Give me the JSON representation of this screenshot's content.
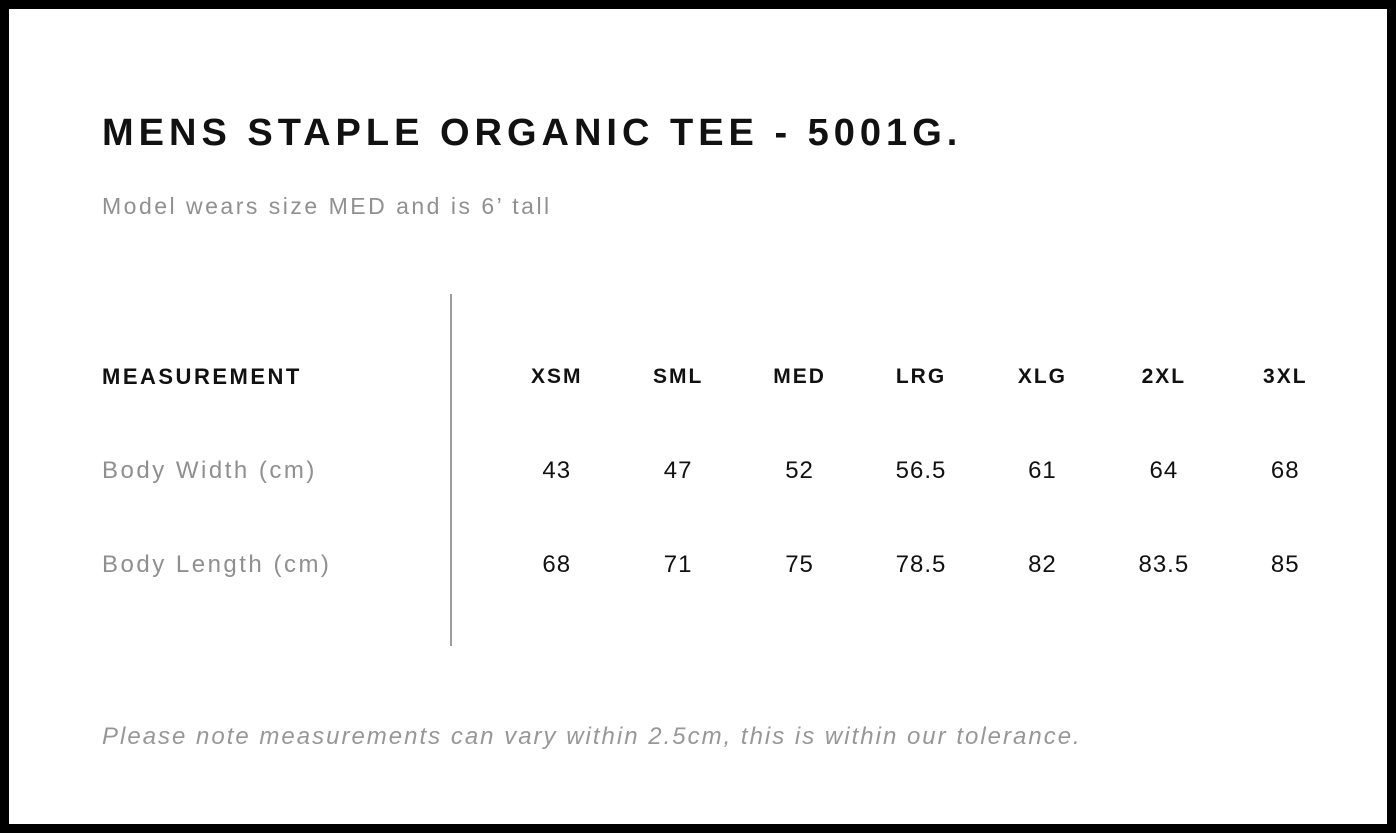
{
  "header": {
    "title": "MENS STAPLE ORGANIC TEE - 5001G.",
    "subtitle": "Model wears size MED and is 6’ tall"
  },
  "table": {
    "measurement_header": "MEASUREMENT",
    "sizes": [
      "XSM",
      "SML",
      "MED",
      "LRG",
      "XLG",
      "2XL",
      "3XL"
    ],
    "rows": [
      {
        "label": "Body Width (cm)",
        "values": [
          "43",
          "47",
          "52",
          "56.5",
          "61",
          "64",
          "68"
        ]
      },
      {
        "label": "Body Length (cm)",
        "values": [
          "68",
          "71",
          "75",
          "78.5",
          "82",
          "83.5",
          "85"
        ]
      }
    ]
  },
  "footer": {
    "note": "Please note measurements can vary within 2.5cm, this is within our tolerance."
  },
  "colors": {
    "page_border": "#000000",
    "text_primary": "#111111",
    "text_secondary": "#909090",
    "divider": "#9c9c9c"
  },
  "chart_data": {
    "type": "table",
    "title": "MENS STAPLE ORGANIC TEE - 5001G.",
    "columns": [
      "MEASUREMENT",
      "XSM",
      "SML",
      "MED",
      "LRG",
      "XLG",
      "2XL",
      "3XL"
    ],
    "rows": [
      [
        "Body Width (cm)",
        43,
        47,
        52,
        56.5,
        61,
        64,
        68
      ],
      [
        "Body Length (cm)",
        68,
        71,
        75,
        78.5,
        82,
        83.5,
        85
      ]
    ]
  }
}
